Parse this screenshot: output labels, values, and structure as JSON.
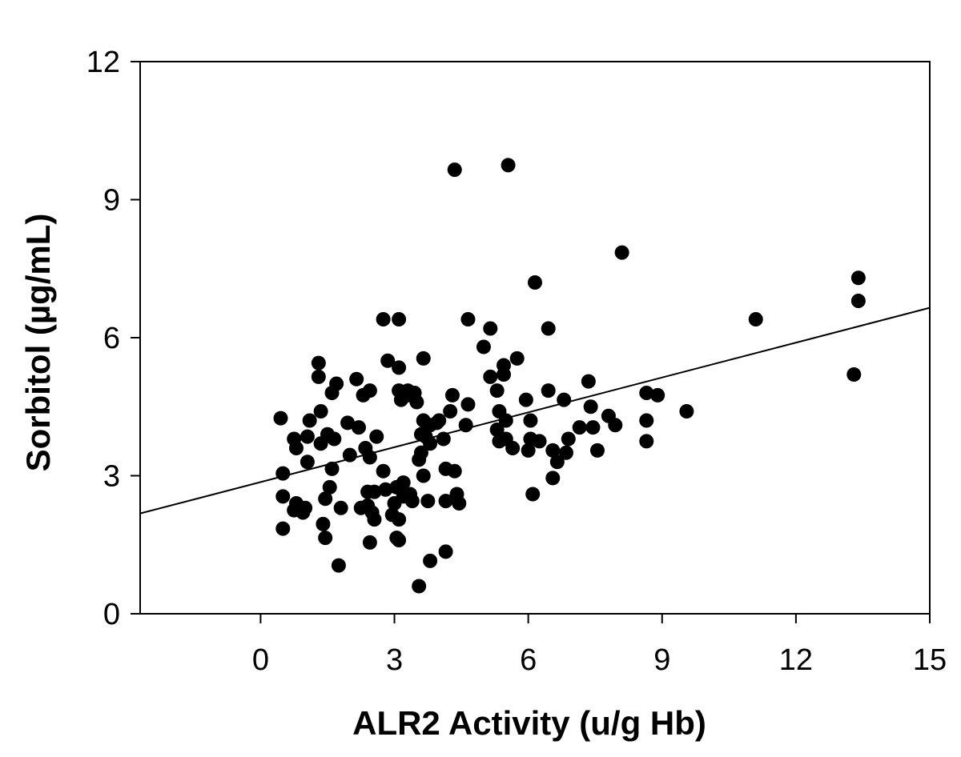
{
  "chart_data": {
    "type": "scatter",
    "title": "",
    "xlabel": "ALR2 Activity (u/g Hb)",
    "ylabel": "Sorbitol (µg/mL)",
    "xlim": [
      -2.7,
      15
    ],
    "ylim": [
      0,
      12
    ],
    "xticks": [
      0,
      3,
      6,
      9,
      12,
      15
    ],
    "yticks": [
      0,
      3,
      6,
      9,
      12
    ],
    "grid": false,
    "legend": "none",
    "marker_color": "#000000",
    "trendline": {
      "type": "linear",
      "x": [
        -2.7,
        15
      ],
      "y": [
        2.18,
        6.65
      ]
    },
    "series": [
      {
        "points": [
          [
            0.45,
            4.25
          ],
          [
            0.5,
            3.05
          ],
          [
            0.5,
            2.55
          ],
          [
            0.5,
            1.85
          ],
          [
            0.75,
            3.8
          ],
          [
            0.8,
            3.6
          ],
          [
            0.8,
            2.4
          ],
          [
            0.75,
            2.25
          ],
          [
            0.95,
            2.2
          ],
          [
            1.0,
            2.3
          ],
          [
            1.05,
            3.85
          ],
          [
            1.05,
            3.3
          ],
          [
            1.1,
            4.2
          ],
          [
            1.3,
            5.45
          ],
          [
            1.3,
            5.15
          ],
          [
            1.35,
            4.4
          ],
          [
            1.35,
            3.7
          ],
          [
            1.4,
            1.95
          ],
          [
            1.45,
            1.65
          ],
          [
            1.45,
            2.5
          ],
          [
            1.5,
            3.9
          ],
          [
            1.55,
            2.75
          ],
          [
            1.6,
            4.8
          ],
          [
            1.6,
            3.15
          ],
          [
            1.65,
            3.8
          ],
          [
            1.7,
            5.0
          ],
          [
            1.75,
            1.05
          ],
          [
            1.8,
            2.3
          ],
          [
            1.95,
            4.15
          ],
          [
            2.0,
            3.45
          ],
          [
            2.15,
            5.1
          ],
          [
            2.2,
            4.05
          ],
          [
            2.25,
            2.3
          ],
          [
            2.3,
            4.75
          ],
          [
            2.35,
            3.6
          ],
          [
            2.4,
            2.65
          ],
          [
            2.4,
            2.35
          ],
          [
            2.45,
            4.85
          ],
          [
            2.45,
            3.4
          ],
          [
            2.45,
            1.55
          ],
          [
            2.5,
            2.2
          ],
          [
            2.55,
            2.65
          ],
          [
            2.55,
            2.05
          ],
          [
            2.6,
            3.85
          ],
          [
            2.75,
            6.4
          ],
          [
            2.75,
            3.1
          ],
          [
            2.8,
            2.7
          ],
          [
            2.85,
            5.5
          ],
          [
            2.95,
            2.15
          ],
          [
            3.0,
            2.4
          ],
          [
            3.05,
            1.65
          ],
          [
            3.05,
            2.75
          ],
          [
            3.1,
            6.4
          ],
          [
            3.1,
            5.35
          ],
          [
            3.1,
            4.85
          ],
          [
            3.1,
            2.05
          ],
          [
            3.1,
            1.6
          ],
          [
            3.15,
            4.65
          ],
          [
            3.2,
            2.85
          ],
          [
            3.2,
            2.55
          ],
          [
            3.3,
            4.85
          ],
          [
            3.3,
            4.75
          ],
          [
            3.35,
            2.6
          ],
          [
            3.4,
            2.45
          ],
          [
            3.45,
            4.8
          ],
          [
            3.5,
            4.6
          ],
          [
            3.55,
            3.35
          ],
          [
            3.55,
            0.6
          ],
          [
            3.6,
            3.9
          ],
          [
            3.6,
            3.5
          ],
          [
            3.65,
            5.55
          ],
          [
            3.65,
            4.2
          ],
          [
            3.65,
            3.0
          ],
          [
            3.7,
            3.85
          ],
          [
            3.75,
            2.45
          ],
          [
            3.8,
            4.1
          ],
          [
            3.8,
            3.7
          ],
          [
            3.8,
            1.15
          ],
          [
            3.95,
            4.15
          ],
          [
            4.0,
            4.2
          ],
          [
            4.1,
            3.8
          ],
          [
            4.15,
            2.45
          ],
          [
            4.15,
            3.15
          ],
          [
            4.15,
            1.35
          ],
          [
            4.25,
            4.4
          ],
          [
            4.3,
            4.75
          ],
          [
            4.35,
            3.1
          ],
          [
            4.35,
            9.65
          ],
          [
            4.4,
            2.6
          ],
          [
            4.45,
            2.4
          ],
          [
            4.6,
            4.1
          ],
          [
            4.65,
            4.55
          ],
          [
            4.65,
            6.4
          ],
          [
            5.0,
            5.8
          ],
          [
            5.15,
            6.2
          ],
          [
            5.15,
            5.15
          ],
          [
            5.3,
            4.85
          ],
          [
            5.3,
            4.0
          ],
          [
            5.35,
            3.75
          ],
          [
            5.35,
            4.4
          ],
          [
            5.45,
            5.4
          ],
          [
            5.45,
            5.2
          ],
          [
            5.5,
            4.2
          ],
          [
            5.5,
            3.8
          ],
          [
            5.55,
            9.75
          ],
          [
            5.65,
            3.6
          ],
          [
            5.75,
            5.55
          ],
          [
            5.95,
            4.65
          ],
          [
            6.0,
            3.55
          ],
          [
            6.05,
            3.8
          ],
          [
            6.05,
            4.2
          ],
          [
            6.1,
            2.6
          ],
          [
            6.15,
            7.2
          ],
          [
            6.25,
            3.75
          ],
          [
            6.45,
            6.2
          ],
          [
            6.45,
            4.85
          ],
          [
            6.55,
            3.55
          ],
          [
            6.55,
            2.95
          ],
          [
            6.65,
            3.3
          ],
          [
            6.8,
            4.65
          ],
          [
            6.85,
            3.5
          ],
          [
            6.9,
            3.8
          ],
          [
            7.15,
            4.05
          ],
          [
            7.35,
            5.05
          ],
          [
            7.4,
            4.5
          ],
          [
            7.45,
            4.05
          ],
          [
            7.55,
            3.55
          ],
          [
            7.8,
            4.3
          ],
          [
            7.95,
            4.1
          ],
          [
            8.1,
            7.85
          ],
          [
            8.65,
            4.8
          ],
          [
            8.65,
            4.2
          ],
          [
            8.65,
            3.75
          ],
          [
            8.9,
            4.75
          ],
          [
            9.55,
            4.4
          ],
          [
            11.1,
            6.4
          ],
          [
            13.3,
            5.2
          ],
          [
            13.4,
            7.3
          ],
          [
            13.4,
            6.8
          ]
        ]
      }
    ]
  }
}
